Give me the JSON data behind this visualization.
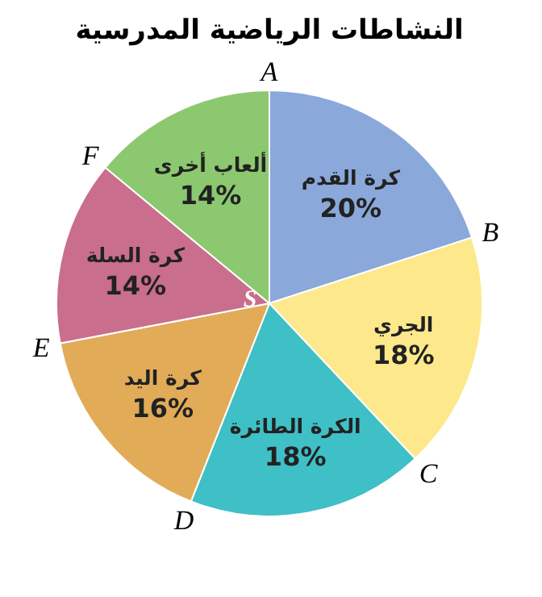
{
  "chart_data": {
    "type": "pie",
    "title": "النشاطات الرياضية المدرسية",
    "categories": [
      "كرة القدم",
      "الجري",
      "الكرة الطائرة",
      "كرة اليد",
      "كرة السلة",
      "ألعاب أخرى"
    ],
    "values": [
      20,
      18,
      18,
      16,
      14,
      14
    ],
    "value_labels": [
      "20%",
      "18%",
      "18%",
      "16%",
      "14%",
      "14%"
    ],
    "colors": [
      "#8aa8da",
      "#fde88c",
      "#3fbfc6",
      "#e2ab58",
      "#c96e8c",
      "#8cc870"
    ],
    "annotations": [
      "A",
      "B",
      "C",
      "D",
      "E",
      "F",
      "S"
    ]
  }
}
